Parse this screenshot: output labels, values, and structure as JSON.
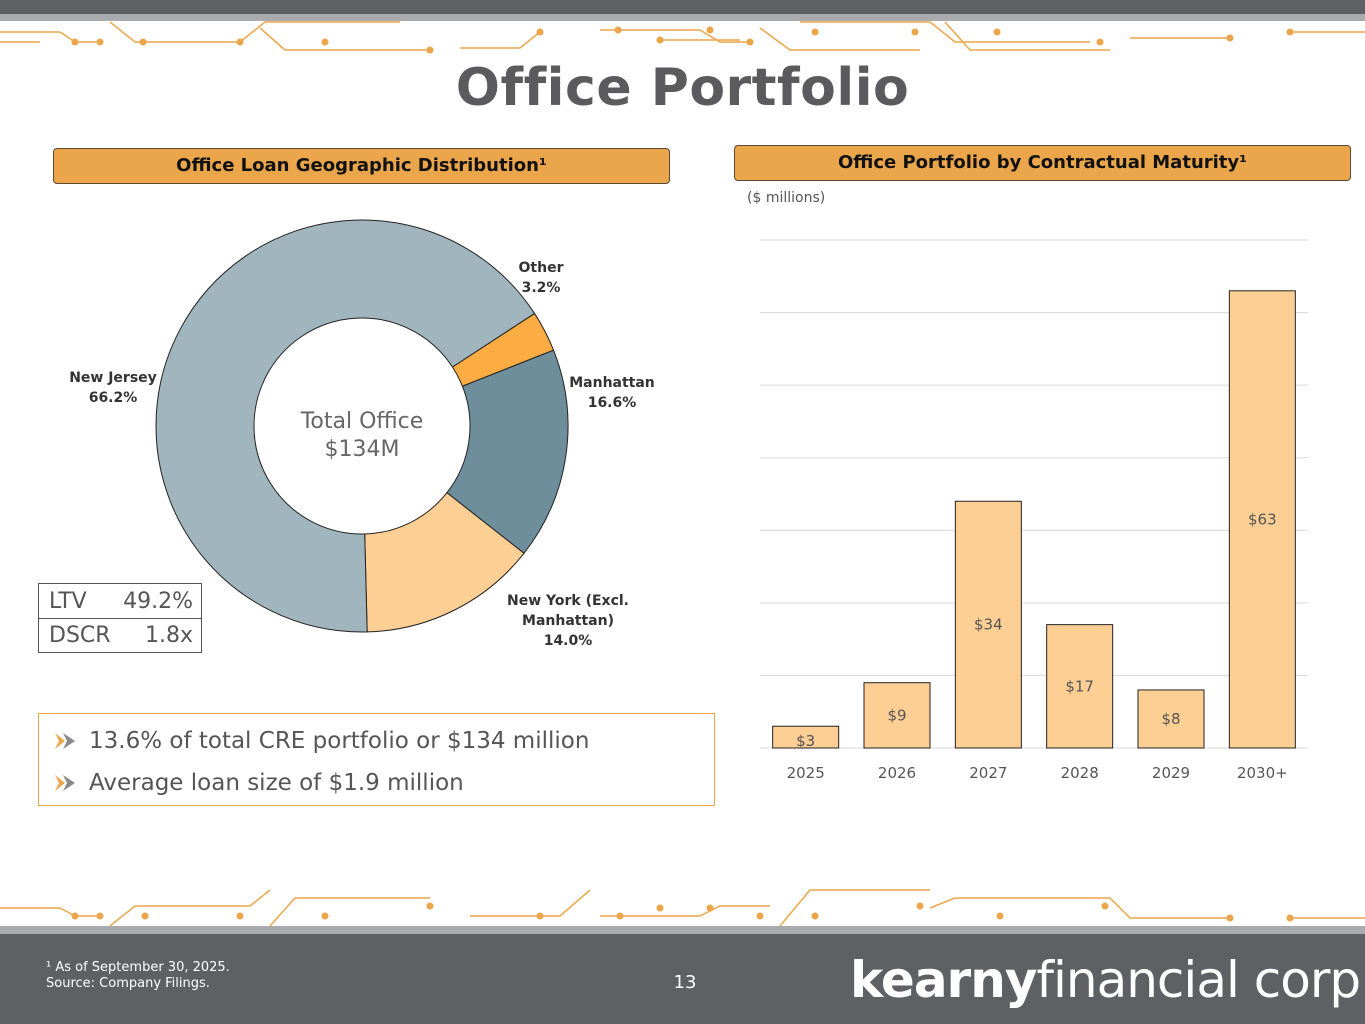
{
  "slide": {
    "title": "Office Portfolio",
    "page_number": "13",
    "footnote": "¹ As of September 30, 2025.",
    "source": "Source: Company Filings.",
    "logo": {
      "bold": "kearny",
      "light": "financial corp."
    },
    "accent_color": "#eba64b",
    "header_color": "#5f6063"
  },
  "left": {
    "header": "Office Loan Geographic Distribution¹",
    "center_label_line1": "Total Office",
    "center_label_line2": "$134M",
    "metrics": [
      {
        "label": "LTV",
        "value": "49.2%"
      },
      {
        "label": "DSCR",
        "value": "1.8x"
      }
    ],
    "bullets": [
      "13.6% of total CRE portfolio or $134 million",
      "Average loan size of $1.9 million"
    ]
  },
  "right": {
    "header": "Office Portfolio by Contractual Maturity¹",
    "units": "($ millions)"
  },
  "chart_data": [
    {
      "type": "pie",
      "title": "Office Loan Geographic Distribution¹",
      "donut": true,
      "slices": [
        {
          "name": "Other",
          "label": "3.2%",
          "value": 3.2,
          "color": "#fbad44"
        },
        {
          "name": "Manhattan",
          "label": "16.6%",
          "value": 16.6,
          "color": "#6e8e9c"
        },
        {
          "name": "New York  (Excl. Manhattan)",
          "label": "14.0%",
          "value": 14.0,
          "color": "#fdcf94"
        },
        {
          "name": "New Jersey",
          "label": "66.2%",
          "value": 66.2,
          "color": "#a1b5bf"
        }
      ]
    },
    {
      "type": "bar",
      "title": "Office Portfolio by Contractual Maturity¹",
      "categories": [
        "2025",
        "2026",
        "2027",
        "2028",
        "2029",
        "2030+"
      ],
      "values": [
        3,
        9,
        34,
        17,
        8,
        63
      ],
      "value_labels": [
        "$3",
        "$9",
        "$34",
        "$17",
        "$8",
        "$63"
      ],
      "ylim": [
        0,
        70
      ],
      "grid": true,
      "bar_color": "#fdcf94"
    }
  ]
}
